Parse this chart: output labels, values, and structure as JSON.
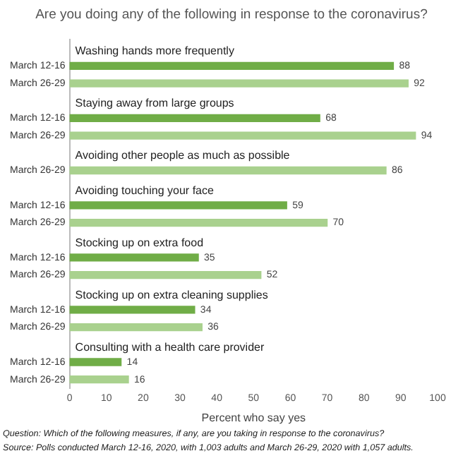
{
  "chart_data": {
    "type": "bar",
    "orientation": "horizontal",
    "title": "Are you doing any of the following in response to the coronavirus?",
    "categories": [
      "Washing hands more frequently",
      "March 12-16",
      "March 26-29",
      "Staying away from large groups",
      "March 12-16",
      "March 26-29",
      "Avoiding other people as much as possible",
      "March 26-29",
      "Avoiding touching your face",
      "March 12-16",
      "March 26-29",
      "Stocking up on extra food",
      "March 12-16",
      "March 26-29",
      "Stocking up on extra cleaning supplies",
      "March 12-16",
      "March 26-29",
      "Consulting with a health care provider",
      "March 12-16",
      "March 26-29"
    ],
    "series": [
      {
        "color": "#70ad47",
        "values": [
          null,
          88,
          null,
          null,
          68,
          null,
          null,
          null,
          null,
          59,
          null,
          null,
          35,
          null,
          null,
          34,
          null,
          null,
          14,
          null
        ]
      },
      {
        "color": "#a9d18e",
        "values": [
          null,
          null,
          92,
          null,
          null,
          94,
          null,
          86,
          null,
          null,
          70,
          null,
          null,
          52,
          null,
          null,
          36,
          null,
          null,
          16
        ]
      }
    ],
    "xlim": [
      0,
      100
    ],
    "xticks": [
      0,
      10,
      20,
      30,
      40,
      50,
      60,
      70,
      80,
      90,
      100
    ],
    "xlabel": "Percent who say yes",
    "data_labels": true,
    "grid": false,
    "legend": false,
    "annotations": [
      "Question: Which of the following measures, if any, are you taking in response to the coronavirus?",
      "Source: Polls conducted March 12-16, 2020, with 1,003 adults and March 26-29, 2020 with 1,057 adults."
    ]
  }
}
